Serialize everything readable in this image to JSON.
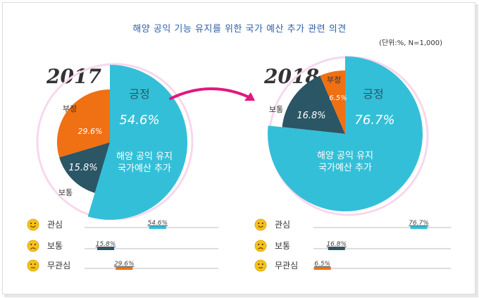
{
  "title": "해양 공익 기능 유지를 위한 국가 예산 추가 관련 의견",
  "unit_note": "(단위:%,  N=1,000)",
  "center_label": [
    "해양 공익 유지",
    "국가예산 추가"
  ],
  "colors": {
    "positive": "#34bfd8",
    "neutral": "#2a5665",
    "negative": "#f07014",
    "ring": "#f7d8ee",
    "arrow": "#e0187e",
    "track": "#bdbdbd"
  },
  "icons": {
    "positive": "smiley-happy-icon",
    "neutral": "smiley-sad-icon",
    "negative": "smiley-neutral-icon"
  },
  "chart_data": [
    {
      "type": "pie",
      "year": "2017",
      "categories": [
        "긍정",
        "부정",
        "보통"
      ],
      "values": [
        54.6,
        29.6,
        15.8
      ],
      "legend_rows": [
        {
          "label": "관심",
          "value": 54.6,
          "value_text": "54.6%",
          "kind": "positive"
        },
        {
          "label": "보통",
          "value": 15.8,
          "value_text": "15.8%",
          "kind": "neutral"
        },
        {
          "label": "무관심",
          "value": 29.6,
          "value_text": "29.6%",
          "kind": "negative"
        }
      ]
    },
    {
      "type": "pie",
      "year": "2018",
      "categories": [
        "긍정",
        "부정",
        "보통"
      ],
      "values": [
        76.7,
        6.5,
        16.8
      ],
      "legend_rows": [
        {
          "label": "관심",
          "value": 76.7,
          "value_text": "76.7%",
          "kind": "positive"
        },
        {
          "label": "보통",
          "value": 16.8,
          "value_text": "16.8%",
          "kind": "neutral"
        },
        {
          "label": "무관심",
          "value": 6.5,
          "value_text": "6.5%",
          "kind": "negative"
        }
      ]
    }
  ]
}
